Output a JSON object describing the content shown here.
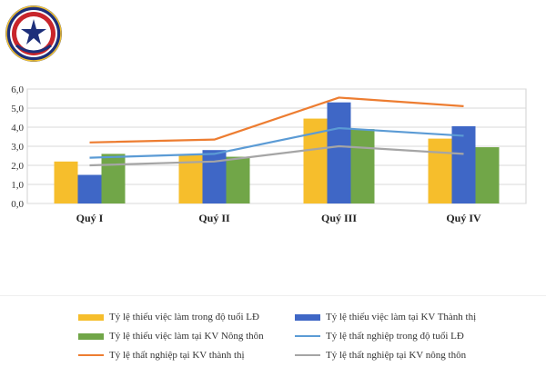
{
  "chart_data": {
    "type": "bar",
    "categories": [
      "Quý I",
      "Quý II",
      "Quý III",
      "Quý IV"
    ],
    "ylim": [
      0,
      6
    ],
    "yticks": [
      "0,0",
      "1,0",
      "2,0",
      "3,0",
      "4,0",
      "5,0",
      "6,0"
    ],
    "grid": true,
    "legend_position": "bottom",
    "bar_series": [
      {
        "name": "Tỷ lệ thiếu việc làm trong độ tuổi LĐ",
        "color": "#F6BE2C",
        "values": [
          2.2,
          2.55,
          4.45,
          3.4
        ]
      },
      {
        "name": "Tỷ lệ thiếu việc làm tại KV Thành thị",
        "color": "#3F67C6",
        "values": [
          1.5,
          2.8,
          5.3,
          4.05
        ]
      },
      {
        "name": "Tỷ lệ thiếu việc làm tại KV Nông thôn",
        "color": "#71A648",
        "values": [
          2.6,
          2.45,
          3.9,
          2.95
        ]
      }
    ],
    "line_series": [
      {
        "name": "Tỷ lệ thất nghiệp trong độ tuổi LĐ",
        "color": "#5B9BD5",
        "values": [
          2.4,
          2.6,
          3.95,
          3.55
        ]
      },
      {
        "name": "Tỷ lệ thất nghiệp tại KV thành thị",
        "color": "#ED7D31",
        "values": [
          3.2,
          3.35,
          5.55,
          5.1
        ]
      },
      {
        "name": "Tỷ lệ thất nghiệp tại KV nông thôn",
        "color": "#A5A5A5",
        "values": [
          2.0,
          2.2,
          3.0,
          2.6
        ]
      }
    ]
  }
}
